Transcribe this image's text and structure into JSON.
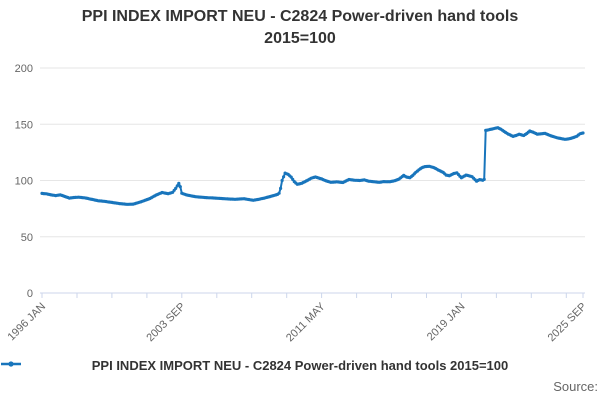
{
  "title": {
    "line1": "PPI INDEX IMPORT NEU - C2824 Power-driven hand tools",
    "line2": "2015=100"
  },
  "legend": {
    "label": "PPI INDEX IMPORT NEU - C2824 Power-driven hand tools 2015=100"
  },
  "source_label": "Source:",
  "colors": {
    "series": "#1875bc",
    "grid": "#e6e6e6",
    "axis_line": "#ccd6eb",
    "axis_text": "#666666",
    "title_text": "#333333"
  },
  "chart_data": {
    "type": "line",
    "title": "PPI INDEX IMPORT NEU - C2824 Power-driven hand tools 2015=100",
    "ylabel": "",
    "xlabel": "",
    "ylim": [
      0,
      200
    ],
    "y_ticks": [
      0,
      50,
      100,
      150,
      200
    ],
    "grid": true,
    "legend_position": "bottom-center",
    "x_axis": {
      "start": "1996-01",
      "end": "2025-09",
      "labeled_ticks": [
        {
          "label": "1996 JAN",
          "date": "1996-01"
        },
        {
          "label": "2003 SEP",
          "date": "2003-09"
        },
        {
          "label": "2011 MAY",
          "date": "2011-05"
        },
        {
          "label": "2019 JAN",
          "date": "2019-01"
        },
        {
          "label": "2025 SEP",
          "date": "2025-09"
        }
      ],
      "minor_tick_interval_months": 23,
      "label_rotation_deg": -45
    },
    "series": [
      {
        "name": "PPI INDEX IMPORT NEU - C2824 Power-driven hand tools 2015=100",
        "color": "#1875bc",
        "frequency": "monthly",
        "points": [
          [
            "1996-01",
            88.5
          ],
          [
            "1996-04",
            88.2
          ],
          [
            "1996-07",
            87.2
          ],
          [
            "1996-10",
            86.6
          ],
          [
            "1997-01",
            87.2
          ],
          [
            "1997-04",
            85.8
          ],
          [
            "1997-07",
            84.4
          ],
          [
            "1997-10",
            84.9
          ],
          [
            "1998-01",
            85.2
          ],
          [
            "1998-05",
            84.6
          ],
          [
            "1998-09",
            83.5
          ],
          [
            "1999-02",
            82.0
          ],
          [
            "1999-06",
            81.5
          ],
          [
            "1999-11",
            80.5
          ],
          [
            "2000-04",
            79.5
          ],
          [
            "2000-09",
            78.8
          ],
          [
            "2001-01",
            79.0
          ],
          [
            "2001-06",
            81.0
          ],
          [
            "2001-12",
            84.0
          ],
          [
            "2002-04",
            87.0
          ],
          [
            "2002-08",
            89.3
          ],
          [
            "2002-12",
            88.3
          ],
          [
            "2003-03",
            89.5
          ],
          [
            "2003-05",
            93.0
          ],
          [
            "2003-07",
            97.5
          ],
          [
            "2003-08",
            94.5
          ],
          [
            "2003-09",
            88.7
          ],
          [
            "2003-12",
            87.2
          ],
          [
            "2004-06",
            85.6
          ],
          [
            "2005-01",
            84.8
          ],
          [
            "2005-08",
            84.3
          ],
          [
            "2006-02",
            83.7
          ],
          [
            "2006-08",
            83.3
          ],
          [
            "2007-02",
            83.8
          ],
          [
            "2007-08",
            82.4
          ],
          [
            "2007-12",
            83.4
          ],
          [
            "2008-04",
            84.6
          ],
          [
            "2008-08",
            86.1
          ],
          [
            "2008-12",
            87.6
          ],
          [
            "2009-01",
            88.7
          ],
          [
            "2009-02",
            93.0
          ],
          [
            "2009-03",
            100.0
          ],
          [
            "2009-05",
            106.6
          ],
          [
            "2009-07",
            105.4
          ],
          [
            "2009-09",
            103.0
          ],
          [
            "2009-11",
            99.0
          ],
          [
            "2010-01",
            96.6
          ],
          [
            "2010-04",
            97.6
          ],
          [
            "2010-07",
            99.6
          ],
          [
            "2010-10",
            102.0
          ],
          [
            "2011-01",
            103.1
          ],
          [
            "2011-03",
            102.2
          ],
          [
            "2011-05",
            101.4
          ],
          [
            "2011-08",
            99.6
          ],
          [
            "2011-11",
            98.4
          ],
          [
            "2012-03",
            98.8
          ],
          [
            "2012-07",
            98.2
          ],
          [
            "2012-11",
            100.9
          ],
          [
            "2013-03",
            100.2
          ],
          [
            "2013-06",
            100.0
          ],
          [
            "2013-09",
            100.6
          ],
          [
            "2013-12",
            99.4
          ],
          [
            "2014-04",
            98.8
          ],
          [
            "2014-07",
            98.4
          ],
          [
            "2014-10",
            99.0
          ],
          [
            "2015-02",
            98.9
          ],
          [
            "2015-05",
            99.8
          ],
          [
            "2015-08",
            101.3
          ],
          [
            "2015-11",
            104.5
          ],
          [
            "2016-01",
            103.0
          ],
          [
            "2016-03",
            102.5
          ],
          [
            "2016-05",
            104.5
          ],
          [
            "2016-07",
            107.3
          ],
          [
            "2016-09",
            109.5
          ],
          [
            "2016-11",
            111.4
          ],
          [
            "2017-01",
            112.4
          ],
          [
            "2017-04",
            112.6
          ],
          [
            "2017-07",
            111.4
          ],
          [
            "2017-10",
            109.2
          ],
          [
            "2018-01",
            107.2
          ],
          [
            "2018-03",
            104.8
          ],
          [
            "2018-05",
            104.2
          ],
          [
            "2018-08",
            106.2
          ],
          [
            "2018-10",
            106.8
          ],
          [
            "2019-01",
            102.4
          ],
          [
            "2019-04",
            104.8
          ],
          [
            "2019-06",
            104.2
          ],
          [
            "2019-08",
            103.4
          ],
          [
            "2019-11",
            99.4
          ],
          [
            "2020-01",
            100.8
          ],
          [
            "2020-03",
            100.2
          ],
          [
            "2020-04",
            101.0
          ],
          [
            "2020-05",
            144.5
          ],
          [
            "2020-08",
            145.4
          ],
          [
            "2020-11",
            146.4
          ],
          [
            "2021-01",
            146.9
          ],
          [
            "2021-03",
            145.6
          ],
          [
            "2021-05",
            143.6
          ],
          [
            "2021-08",
            141.2
          ],
          [
            "2021-11",
            139.2
          ],
          [
            "2022-01",
            140.0
          ],
          [
            "2022-03",
            141.2
          ],
          [
            "2022-06",
            140.0
          ],
          [
            "2022-08",
            141.8
          ],
          [
            "2022-10",
            144.0
          ],
          [
            "2022-12",
            143.0
          ],
          [
            "2023-03",
            141.2
          ],
          [
            "2023-05",
            141.4
          ],
          [
            "2023-08",
            141.9
          ],
          [
            "2023-10",
            140.8
          ],
          [
            "2023-12",
            139.6
          ],
          [
            "2024-02",
            138.8
          ],
          [
            "2024-04",
            138.0
          ],
          [
            "2024-06",
            137.4
          ],
          [
            "2024-09",
            136.6
          ],
          [
            "2024-11",
            136.9
          ],
          [
            "2025-01",
            137.4
          ],
          [
            "2025-03",
            138.3
          ],
          [
            "2025-05",
            139.4
          ],
          [
            "2025-07",
            141.5
          ],
          [
            "2025-09",
            142.2
          ]
        ]
      }
    ]
  }
}
